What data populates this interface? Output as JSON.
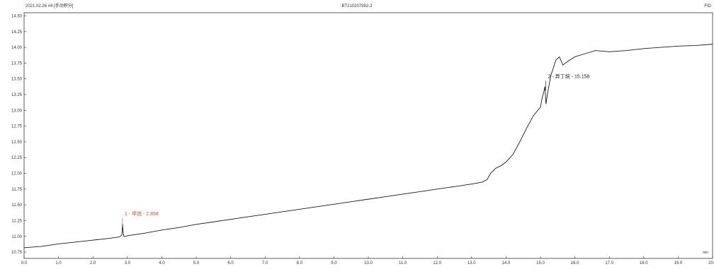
{
  "header": {
    "left_text": "2021.02.26 #4 [手动积分]",
    "center_text": "BT21020798​2-2",
    "right_text": "FID"
  },
  "chart_data": {
    "type": "line",
    "xlabel": "min",
    "ylabel": "",
    "xlim": [
      0.0,
      20.0
    ],
    "ylim": [
      10.5,
      14.5
    ],
    "x_ticks": [
      "0.0",
      "1.0",
      "2.0",
      "3.0",
      "4.0",
      "5.0",
      "6.0",
      "7.0",
      "8.0",
      "9.0",
      "10.0",
      "11.0",
      "12.0",
      "13.0",
      "14.0",
      "15.0",
      "16.0",
      "17.0",
      "18.0",
      "19.0",
      "20.0"
    ],
    "y_ticks": [
      "10.75",
      "11.00",
      "11.25",
      "11.50",
      "11.75",
      "12.00",
      "12.25",
      "12.50",
      "12.75",
      "13.00",
      "13.25",
      "13.50",
      "13.75",
      "14.00",
      "14.25",
      "14.50"
    ],
    "series": [
      {
        "name": "",
        "color": "#1a1a1a",
        "x": [
          0.0,
          0.5,
          1.0,
          1.5,
          2.0,
          2.5,
          2.75,
          2.8,
          2.84,
          2.86,
          2.88,
          2.9,
          2.95,
          3.0,
          3.5,
          4.0,
          4.5,
          5.0,
          5.5,
          6.0,
          6.5,
          7.0,
          7.5,
          8.0,
          8.5,
          9.0,
          9.5,
          10.0,
          10.5,
          11.0,
          11.5,
          12.0,
          12.5,
          13.0,
          13.3,
          13.45,
          13.55,
          13.7,
          13.85,
          14.0,
          14.2,
          14.4,
          14.6,
          14.8,
          15.0,
          15.05,
          15.1,
          15.13,
          15.16,
          15.2,
          15.3,
          15.45,
          15.55,
          15.65,
          15.8,
          16.0,
          16.3,
          16.6,
          17.0,
          17.5,
          18.0,
          18.5,
          19.0,
          19.5,
          20.0
        ],
        "y": [
          10.82,
          10.84,
          10.88,
          10.91,
          10.94,
          10.97,
          10.99,
          11.0,
          11.02,
          11.2,
          11.05,
          11.0,
          11.0,
          11.01,
          11.05,
          11.1,
          11.14,
          11.19,
          11.23,
          11.27,
          11.31,
          11.35,
          11.39,
          11.43,
          11.47,
          11.51,
          11.55,
          11.59,
          11.63,
          11.67,
          11.71,
          11.75,
          11.79,
          11.83,
          11.86,
          11.9,
          12.0,
          12.08,
          12.12,
          12.18,
          12.3,
          12.5,
          12.72,
          12.92,
          13.05,
          13.2,
          13.3,
          13.38,
          13.1,
          13.25,
          13.55,
          13.8,
          13.85,
          13.72,
          13.78,
          13.85,
          13.9,
          13.95,
          13.93,
          13.95,
          13.98,
          14.0,
          14.02,
          14.03,
          14.05
        ]
      }
    ],
    "annotations": [
      {
        "label": "1 - 甲烷 - 2.858",
        "x": 2.858,
        "y": 11.2,
        "color": "#d24a3a"
      },
      {
        "label": "2 - 异丁烷 - 15.158",
        "x": 15.158,
        "y": 13.38,
        "color": "#1a1a1a"
      }
    ],
    "grid": false,
    "legend": "none"
  }
}
